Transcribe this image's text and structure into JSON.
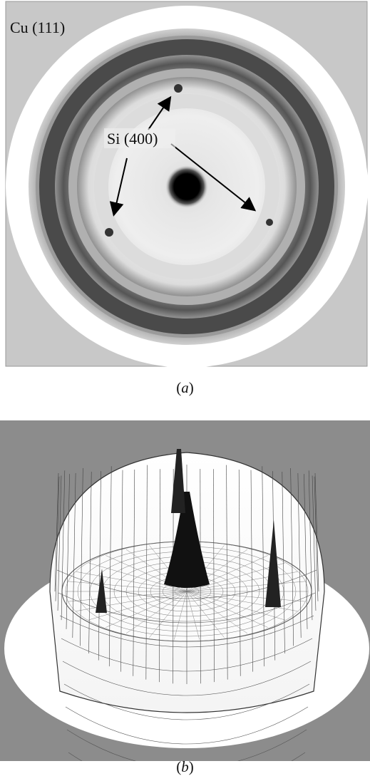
{
  "figure": {
    "panel_a": {
      "label_cu": "Cu (111)",
      "label_si": "Si (400)",
      "caption_open": "(",
      "caption_letter": "a",
      "caption_close": ")"
    },
    "panel_b": {
      "caption_open": "(",
      "caption_letter": "b",
      "caption_close": ")"
    }
  },
  "colors": {
    "frame_gray": "#c8c8c8",
    "ring_dark": "#5a5a5a",
    "panel_b_bg": "#8c8c8c"
  }
}
